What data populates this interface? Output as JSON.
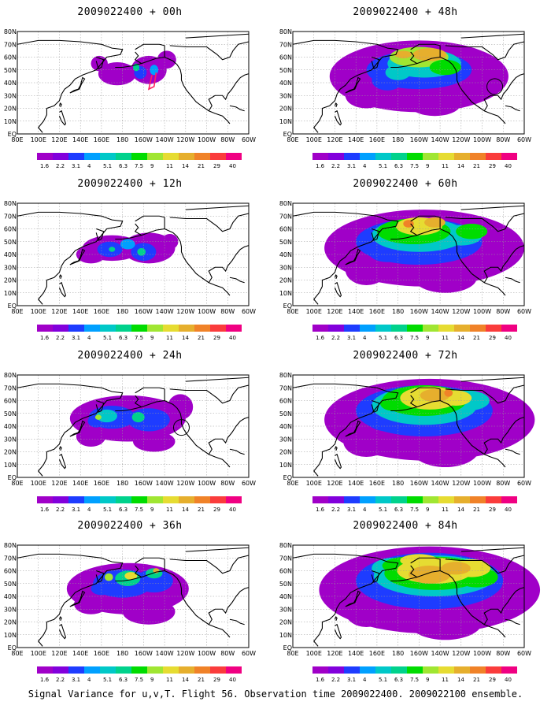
{
  "figure": {
    "footer": "Signal Variance for u,v,T. Flight 56. Observation time 2009022400. 2009022100 ensemble."
  },
  "colorbar": {
    "labels": [
      "1.6",
      "2.2",
      "3.1",
      "4",
      "5.1",
      "6.3",
      "7.5",
      "9",
      "11",
      "14",
      "21",
      "29",
      "40"
    ],
    "colors": [
      "#a000c8",
      "#8200dc",
      "#1e3cff",
      "#00a0ff",
      "#00c8c8",
      "#00d28c",
      "#00dc00",
      "#a0e632",
      "#e6dc32",
      "#e6af2d",
      "#f08228",
      "#fa3c3c",
      "#f00082"
    ]
  },
  "axes": {
    "lat_labels": [
      "80N",
      "70N",
      "60N",
      "50N",
      "40N",
      "30N",
      "20N",
      "10N",
      "EQ"
    ],
    "lon_labels": [
      "80E",
      "100E",
      "120E",
      "140E",
      "160E",
      "180",
      "160W",
      "140W",
      "120W",
      "100W",
      "80W",
      "60W"
    ]
  },
  "panels": [
    {
      "title": "2009022400 + 00h",
      "hour": 0
    },
    {
      "title": "2009022400 + 48h",
      "hour": 48
    },
    {
      "title": "2009022400 + 12h",
      "hour": 12
    },
    {
      "title": "2009022400 + 60h",
      "hour": 60
    },
    {
      "title": "2009022400 + 24h",
      "hour": 24
    },
    {
      "title": "2009022400 + 72h",
      "hour": 72
    },
    {
      "title": "2009022400 + 36h",
      "hour": 36
    },
    {
      "title": "2009022400 + 84h",
      "hour": 84
    }
  ]
}
